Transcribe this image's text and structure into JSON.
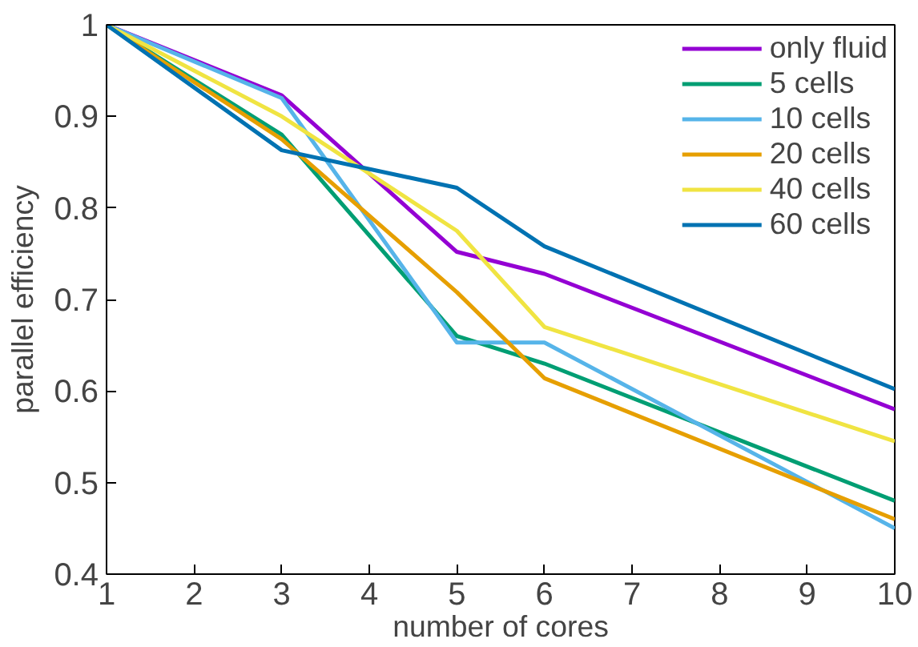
{
  "chart_data": {
    "type": "line",
    "xlabel": "number of cores",
    "ylabel": "parallel efficiency",
    "x": [
      1,
      3,
      5,
      6,
      10
    ],
    "series": [
      {
        "name": "only fluid",
        "color": "#9400d3",
        "values": [
          1,
          0.923,
          0.752,
          0.728,
          0.58
        ]
      },
      {
        "name": "5 cells",
        "color": "#009e73",
        "values": [
          1,
          0.88,
          0.66,
          0.63,
          0.48
        ]
      },
      {
        "name": "10 cells",
        "color": "#56b4e9",
        "values": [
          1,
          0.92,
          0.653,
          0.653,
          0.45
        ]
      },
      {
        "name": "20 cells",
        "color": "#e69f00",
        "values": [
          1,
          0.875,
          0.708,
          0.614,
          0.46
        ]
      },
      {
        "name": "40 cells",
        "color": "#f0e442",
        "values": [
          1,
          0.9,
          0.775,
          0.67,
          0.545
        ]
      },
      {
        "name": "60 cells",
        "color": "#0072b2",
        "values": [
          1,
          0.863,
          0.822,
          0.758,
          0.602
        ]
      }
    ],
    "xlim": [
      1,
      10
    ],
    "xticks": [
      1,
      2,
      3,
      4,
      5,
      6,
      7,
      8,
      9,
      10
    ],
    "ylim": [
      0.4,
      1
    ],
    "yticks": [
      0.4,
      0.5,
      0.6,
      0.7,
      0.8,
      0.9,
      {
        "value": 1,
        "label": "1"
      }
    ],
    "grid": false,
    "legend": "top right",
    "marker": "none",
    "line_style": "solid"
  }
}
